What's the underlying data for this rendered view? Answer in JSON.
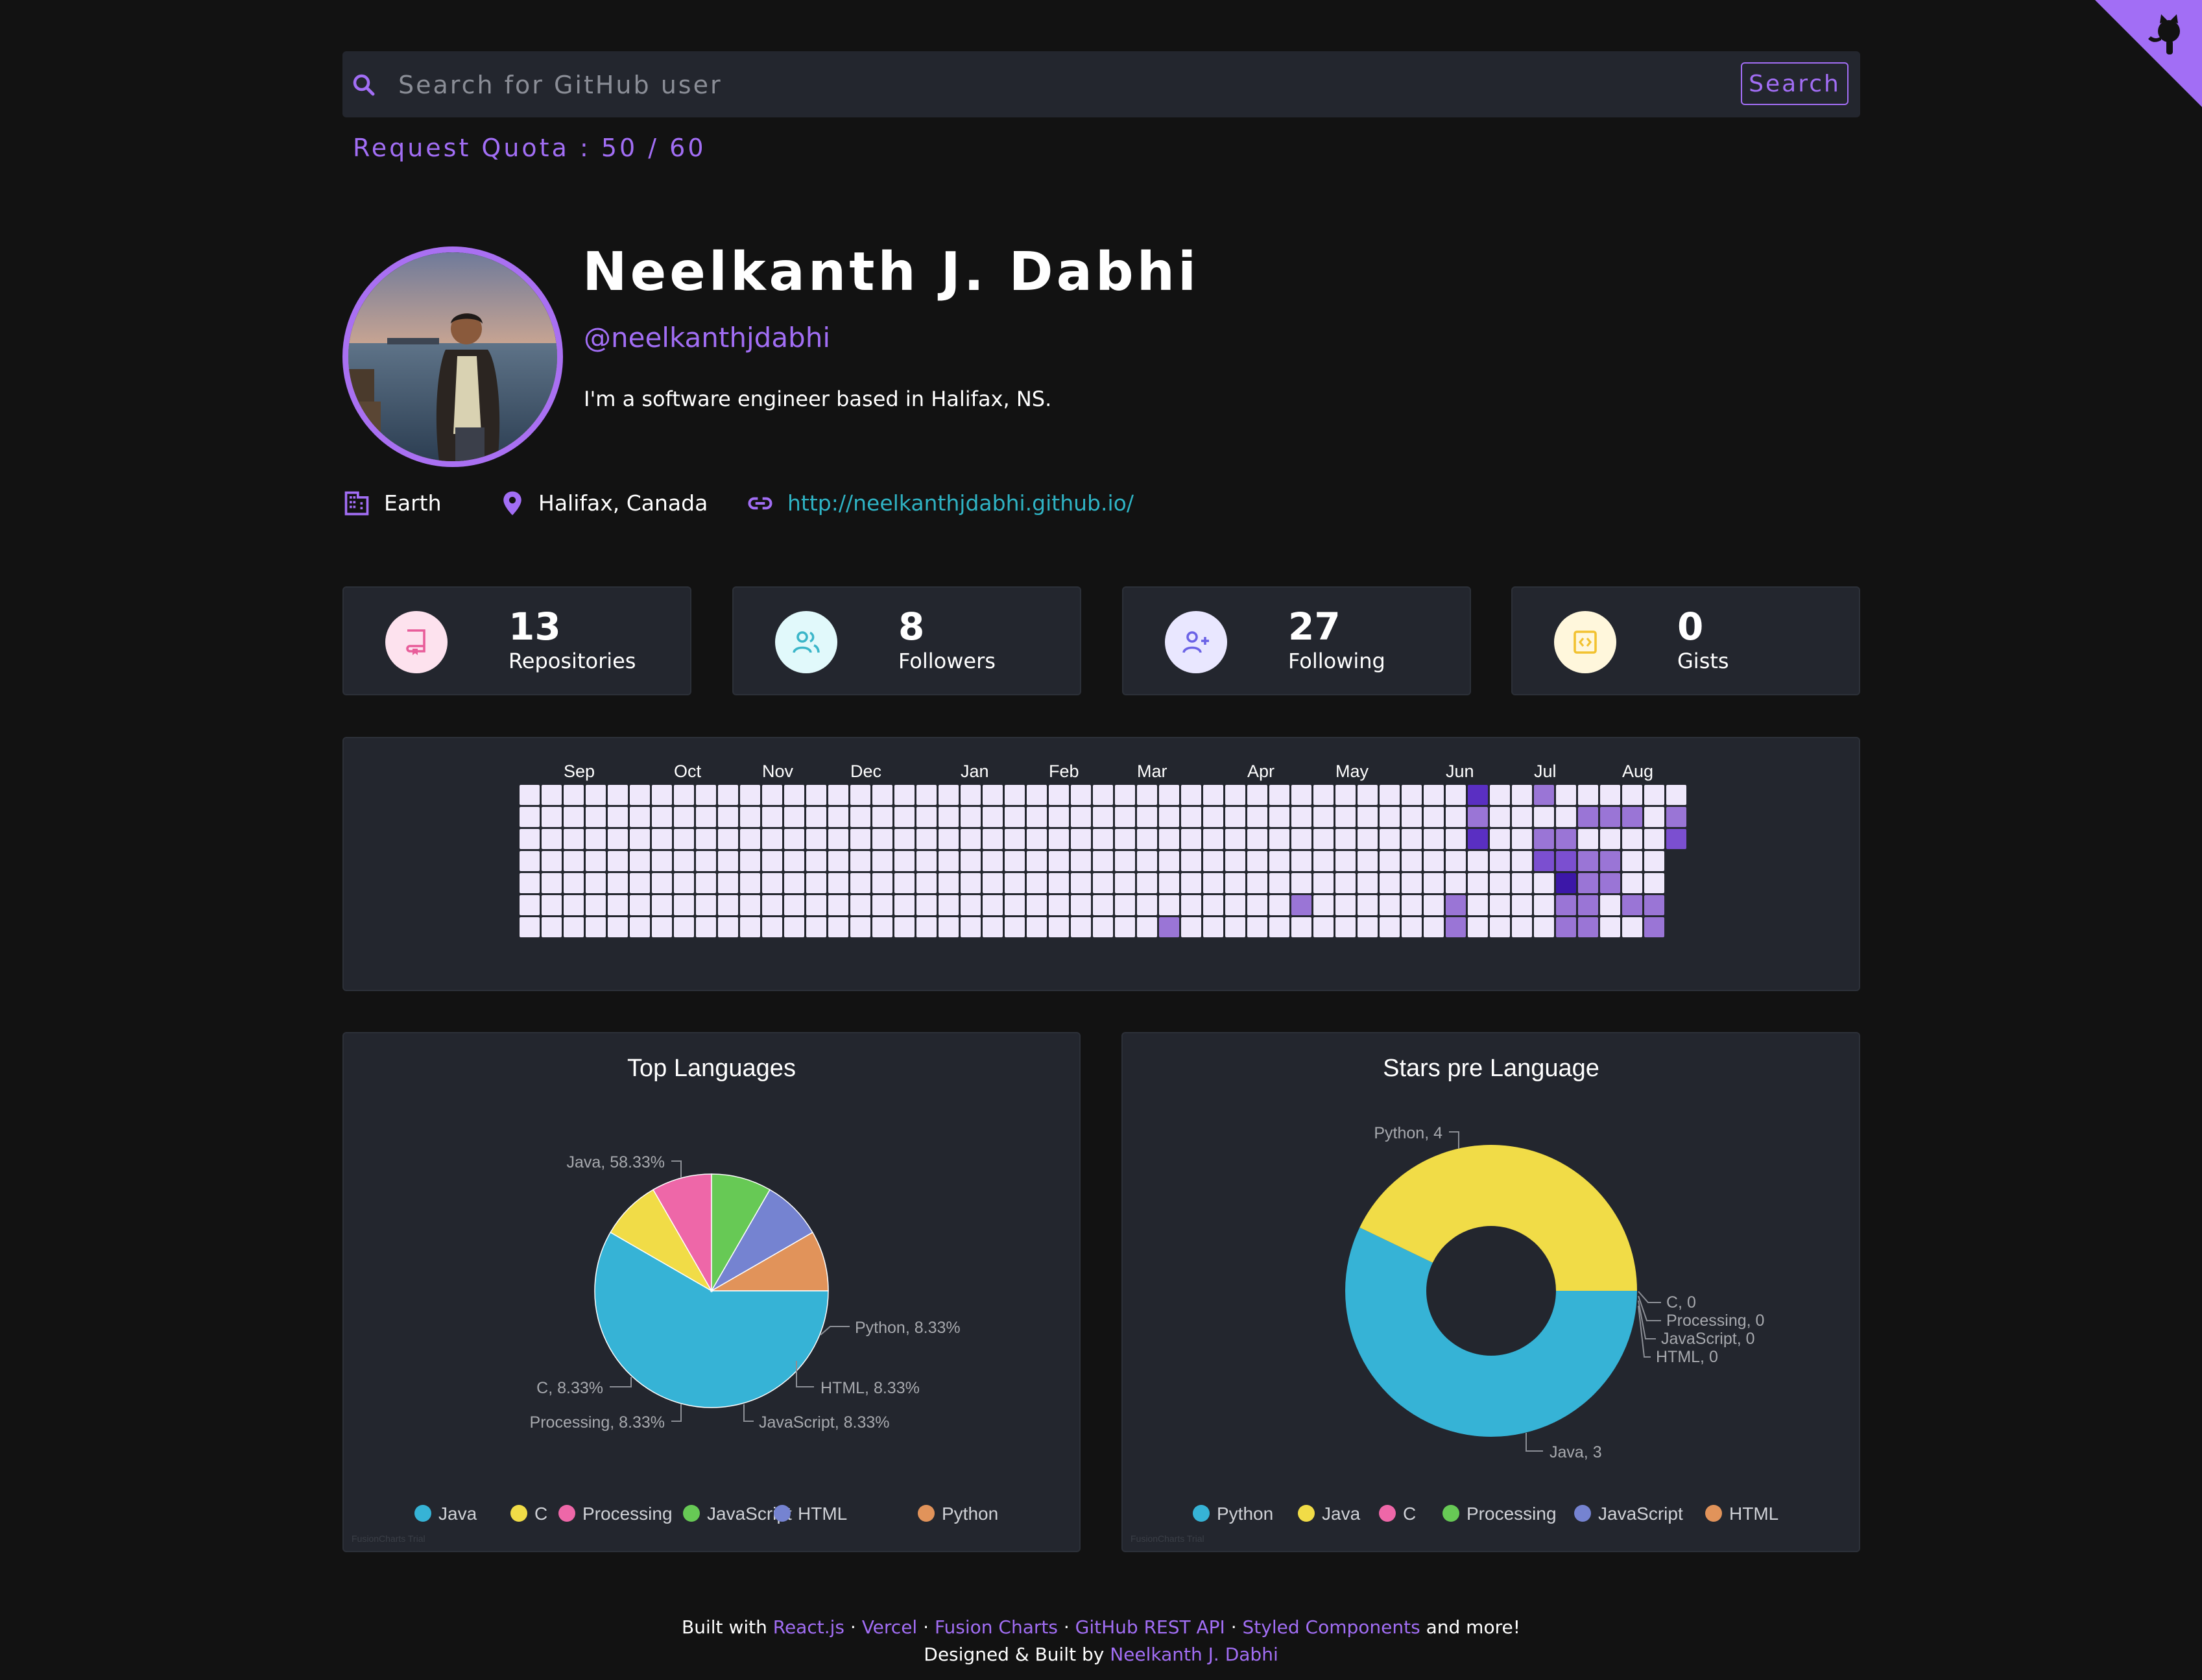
{
  "search": {
    "placeholder": "Search for GitHub user",
    "value": "",
    "button_label": "Search",
    "quota_text": "Request Quota : 50 / 60"
  },
  "profile": {
    "name": "Neelkanth J. Dabhi",
    "login": "@neelkanthjdabhi",
    "bio": "I'm a software engineer based in Halifax, NS.",
    "company": "Earth",
    "location": "Halifax, Canada",
    "blog": "http://neelkanthjdabhi.github.io/"
  },
  "stats": [
    {
      "value": "13",
      "label": "Repositories",
      "icon": "repo-icon",
      "color": "#e85d9a",
      "bg": "#fde2ee"
    },
    {
      "value": "8",
      "label": "Followers",
      "icon": "users-icon",
      "color": "#3bb6c9",
      "bg": "#e1f9fb"
    },
    {
      "value": "27",
      "label": "Following",
      "icon": "user-plus-icon",
      "color": "#6b63e6",
      "bg": "#e9e7ff"
    },
    {
      "value": "0",
      "label": "Gists",
      "icon": "code-icon",
      "color": "#f2c230",
      "bg": "#fff7dc"
    }
  ],
  "contributions": {
    "months": [
      "Sep",
      "Oct",
      "Nov",
      "Dec",
      "Jan",
      "Feb",
      "Mar",
      "Apr",
      "May",
      "Jun",
      "Jul",
      "Aug"
    ],
    "month_weeks": [
      2,
      7,
      11,
      15,
      20,
      24,
      28,
      33,
      37,
      42,
      46,
      50
    ],
    "weeks": 53,
    "last_week_days": 3,
    "levels": {
      "0": "#efe8fb",
      "1": "#9a75d6",
      "2": "#7b4fd0",
      "3": "#5a2fc2",
      "4": "#3c17a8"
    },
    "cells": [
      [
        43,
        0,
        3
      ],
      [
        43,
        1,
        1
      ],
      [
        43,
        2,
        3
      ],
      [
        46,
        0,
        1
      ],
      [
        46,
        2,
        1
      ],
      [
        46,
        3,
        2
      ],
      [
        47,
        2,
        1
      ],
      [
        47,
        3,
        2
      ],
      [
        47,
        4,
        4
      ],
      [
        47,
        5,
        1
      ],
      [
        47,
        6,
        1
      ],
      [
        48,
        1,
        1
      ],
      [
        48,
        3,
        1
      ],
      [
        48,
        4,
        1
      ],
      [
        48,
        5,
        1
      ],
      [
        48,
        6,
        1
      ],
      [
        49,
        1,
        1
      ],
      [
        49,
        3,
        1
      ],
      [
        49,
        4,
        1
      ],
      [
        50,
        1,
        1
      ],
      [
        50,
        5,
        1
      ],
      [
        51,
        5,
        1
      ],
      [
        51,
        6,
        1
      ],
      [
        52,
        1,
        1
      ],
      [
        52,
        2,
        2
      ],
      [
        29,
        6,
        1
      ],
      [
        35,
        5,
        1
      ],
      [
        42,
        5,
        1
      ],
      [
        42,
        6,
        1
      ]
    ]
  },
  "chart_data": [
    {
      "type": "pie",
      "title": "Top Languages",
      "categories": [
        "Java",
        "C",
        "Processing",
        "JavaScript",
        "HTML",
        "Python"
      ],
      "values": [
        58.33,
        8.33,
        8.33,
        8.33,
        8.33,
        8.33
      ],
      "colors": [
        "#36b3d6",
        "#f1dc47",
        "#ee67a8",
        "#67c955",
        "#7583d1",
        "#e1935a"
      ],
      "data_labels": [
        "Java, 58.33%",
        "C, 8.33%",
        "Processing, 8.33%",
        "JavaScript, 8.33%",
        "HTML, 8.33%",
        "Python, 8.33%"
      ],
      "watermark": "FusionCharts Trial"
    },
    {
      "type": "doughnut",
      "title": "Stars pre Language",
      "categories": [
        "Python",
        "Java",
        "C",
        "Processing",
        "JavaScript",
        "HTML"
      ],
      "values": [
        4,
        3,
        0,
        0,
        0,
        0
      ],
      "colors": [
        "#36b3d6",
        "#f1dc47",
        "#ee67a8",
        "#67c955",
        "#7583d1",
        "#e1935a"
      ],
      "data_labels": [
        "Python, 4",
        "Java, 3",
        "C, 0",
        "Processing, 0",
        "JavaScript, 0",
        "HTML, 0"
      ],
      "watermark": "FusionCharts Trial"
    }
  ],
  "footer": {
    "built_with": "Built with",
    "links": [
      "React.js",
      "Vercel",
      "Fusion Charts",
      "GitHub REST API",
      "Styled Components"
    ],
    "separator": "·",
    "and_more": "and more!",
    "designed_by": "Designed & Built by",
    "author": "Neelkanth J. Dabhi"
  }
}
